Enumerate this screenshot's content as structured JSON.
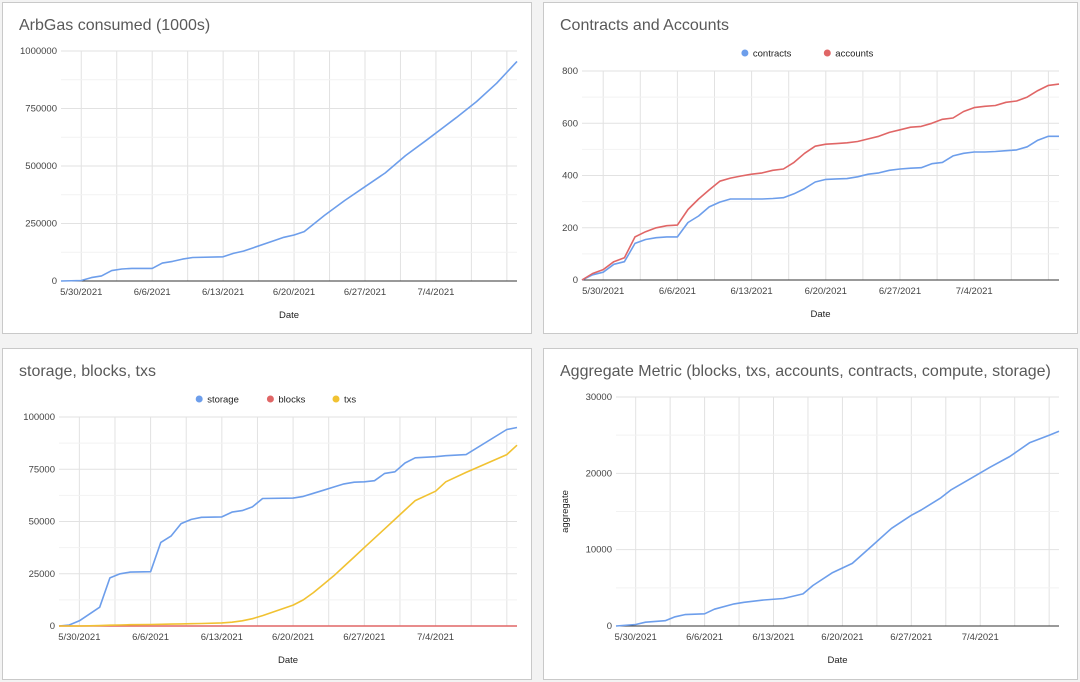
{
  "chart_data": [
    {
      "type": "line",
      "title": "ArbGas consumed (1000s)",
      "xlabel": "Date",
      "ylabel": "",
      "x_ticks": [
        "5/30/2021",
        "6/6/2021",
        "6/13/2021",
        "6/20/2021",
        "6/27/2021",
        "7/4/2021"
      ],
      "y_ticks": [
        "0",
        "250000",
        "500000",
        "750000",
        "1000000"
      ],
      "ylim": [
        0,
        1000000
      ],
      "xlim": [
        "2021-05-28",
        "2021-07-12"
      ],
      "grid": true,
      "legend": "none",
      "colors": {
        "series": "#6d9eeb"
      },
      "x": [
        "2021-05-28",
        "2021-05-30",
        "2021-05-31",
        "2021-06-01",
        "2021-06-02",
        "2021-06-03",
        "2021-06-04",
        "2021-06-06",
        "2021-06-07",
        "2021-06-08",
        "2021-06-09",
        "2021-06-10",
        "2021-06-13",
        "2021-06-14",
        "2021-06-15",
        "2021-06-16",
        "2021-06-18",
        "2021-06-19",
        "2021-06-20",
        "2021-06-21",
        "2021-06-23",
        "2021-06-25",
        "2021-06-27",
        "2021-06-29",
        "2021-07-01",
        "2021-07-03",
        "2021-07-06",
        "2021-07-08",
        "2021-07-10",
        "2021-07-12"
      ],
      "series": [
        {
          "values": [
            0,
            2000,
            15000,
            22000,
            45000,
            52000,
            55000,
            55000,
            78000,
            85000,
            95000,
            102000,
            105000,
            120000,
            130000,
            145000,
            175000,
            190000,
            200000,
            215000,
            285000,
            350000,
            410000,
            470000,
            545000,
            610000,
            710000,
            780000,
            860000,
            955000
          ]
        }
      ]
    },
    {
      "type": "line",
      "title": "Contracts and Accounts",
      "xlabel": "Date",
      "ylabel": "",
      "x_ticks": [
        "5/30/2021",
        "6/6/2021",
        "6/13/2021",
        "6/20/2021",
        "6/27/2021",
        "7/4/2021"
      ],
      "y_ticks": [
        "0",
        "200",
        "400",
        "600",
        "800"
      ],
      "ylim": [
        0,
        800
      ],
      "xlim": [
        "2021-05-28",
        "2021-07-12"
      ],
      "grid": true,
      "legend": "top",
      "colors": {
        "contracts": "#6d9eeb",
        "accounts": "#e06666"
      },
      "x": [
        "2021-05-28",
        "2021-05-29",
        "2021-05-30",
        "2021-05-31",
        "2021-06-01",
        "2021-06-02",
        "2021-06-03",
        "2021-06-04",
        "2021-06-05",
        "2021-06-06",
        "2021-06-07",
        "2021-06-08",
        "2021-06-09",
        "2021-06-10",
        "2021-06-11",
        "2021-06-12",
        "2021-06-13",
        "2021-06-14",
        "2021-06-15",
        "2021-06-16",
        "2021-06-17",
        "2021-06-18",
        "2021-06-19",
        "2021-06-20",
        "2021-06-21",
        "2021-06-22",
        "2021-06-23",
        "2021-06-24",
        "2021-06-25",
        "2021-06-26",
        "2021-06-27",
        "2021-06-28",
        "2021-06-29",
        "2021-06-30",
        "2021-07-01",
        "2021-07-02",
        "2021-07-03",
        "2021-07-04",
        "2021-07-05",
        "2021-07-06",
        "2021-07-07",
        "2021-07-08",
        "2021-07-09",
        "2021-07-10",
        "2021-07-11",
        "2021-07-12"
      ],
      "series": [
        {
          "name": "contracts",
          "values": [
            0,
            20,
            30,
            60,
            70,
            140,
            155,
            162,
            165,
            165,
            220,
            245,
            280,
            298,
            310,
            310,
            310,
            310,
            312,
            315,
            330,
            350,
            375,
            385,
            387,
            388,
            395,
            405,
            410,
            420,
            425,
            428,
            430,
            445,
            450,
            475,
            485,
            490,
            490,
            492,
            495,
            498,
            510,
            535,
            550,
            550
          ]
        },
        {
          "name": "accounts",
          "values": [
            0,
            25,
            40,
            70,
            85,
            165,
            185,
            200,
            208,
            210,
            270,
            310,
            345,
            378,
            390,
            398,
            405,
            410,
            420,
            425,
            450,
            485,
            512,
            520,
            522,
            525,
            530,
            540,
            550,
            565,
            575,
            585,
            588,
            600,
            615,
            620,
            645,
            660,
            665,
            668,
            680,
            685,
            700,
            725,
            745,
            750
          ]
        }
      ]
    },
    {
      "type": "line",
      "title": "storage, blocks, txs",
      "xlabel": "Date",
      "ylabel": "",
      "x_ticks": [
        "5/30/2021",
        "6/6/2021",
        "6/13/2021",
        "6/20/2021",
        "6/27/2021",
        "7/4/2021"
      ],
      "y_ticks": [
        "0",
        "25000",
        "50000",
        "75000",
        "100000"
      ],
      "ylim": [
        0,
        100000
      ],
      "xlim": [
        "2021-05-28",
        "2021-07-12"
      ],
      "grid": true,
      "legend": "top",
      "colors": {
        "storage": "#6d9eeb",
        "blocks": "#e06666",
        "txs": "#f1c232"
      },
      "x": [
        "2021-05-28",
        "2021-05-29",
        "2021-05-30",
        "2021-06-01",
        "2021-06-02",
        "2021-06-03",
        "2021-06-04",
        "2021-06-06",
        "2021-06-07",
        "2021-06-08",
        "2021-06-09",
        "2021-06-10",
        "2021-06-11",
        "2021-06-13",
        "2021-06-14",
        "2021-06-15",
        "2021-06-16",
        "2021-06-17",
        "2021-06-20",
        "2021-06-21",
        "2021-06-22",
        "2021-06-23",
        "2021-06-24",
        "2021-06-25",
        "2021-06-26",
        "2021-06-27",
        "2021-06-28",
        "2021-06-29",
        "2021-06-30",
        "2021-07-01",
        "2021-07-02",
        "2021-07-04",
        "2021-07-05",
        "2021-07-07",
        "2021-07-11",
        "2021-07-12"
      ],
      "series": [
        {
          "name": "storage",
          "values": [
            0,
            500,
            2500,
            9000,
            23000,
            25000,
            25800,
            26000,
            40000,
            43000,
            49000,
            51000,
            52000,
            52200,
            54500,
            55200,
            57000,
            61000,
            61200,
            62000,
            63500,
            65000,
            66500,
            68000,
            68800,
            69000,
            69500,
            73000,
            73800,
            78000,
            80500,
            81000,
            81500,
            82000,
            94000,
            95000
          ]
        },
        {
          "name": "blocks",
          "values": [
            0,
            0,
            0,
            0,
            0,
            0,
            0,
            0,
            0,
            0,
            0,
            0,
            0,
            0,
            0,
            0,
            0,
            0,
            0,
            0,
            0,
            0,
            0,
            0,
            0,
            0,
            0,
            0,
            0,
            0,
            0,
            0,
            0,
            0,
            0,
            0
          ]
        },
        {
          "name": "txs",
          "values": [
            0,
            0,
            0,
            200,
            400,
            500,
            600,
            700,
            800,
            900,
            1000,
            1100,
            1200,
            1500,
            1800,
            2500,
            3500,
            5000,
            10000,
            12500,
            16000,
            20000,
            24000,
            28500,
            33000,
            37500,
            42000,
            46500,
            51000,
            55500,
            60000,
            64500,
            69000,
            73500,
            82000,
            86500
          ]
        }
      ]
    },
    {
      "type": "line",
      "title": "Aggregate Metric (blocks, txs, accounts, contracts, compute, storage)",
      "xlabel": "Date",
      "ylabel": "aggregate",
      "x_ticks": [
        "5/30/2021",
        "6/6/2021",
        "6/13/2021",
        "6/20/2021",
        "6/27/2021",
        "7/4/2021"
      ],
      "y_ticks": [
        "0",
        "10000",
        "20000",
        "30000"
      ],
      "ylim": [
        0,
        30000
      ],
      "xlim": [
        "2021-05-28",
        "2021-07-12"
      ],
      "grid": true,
      "legend": "none",
      "colors": {
        "series": "#6d9eeb"
      },
      "x": [
        "2021-05-28",
        "2021-05-30",
        "2021-05-31",
        "2021-06-02",
        "2021-06-03",
        "2021-06-04",
        "2021-06-06",
        "2021-06-07",
        "2021-06-09",
        "2021-06-10",
        "2021-06-12",
        "2021-06-14",
        "2021-06-16",
        "2021-06-17",
        "2021-06-19",
        "2021-06-21",
        "2021-06-23",
        "2021-06-25",
        "2021-06-27",
        "2021-06-28",
        "2021-06-30",
        "2021-07-01",
        "2021-07-03",
        "2021-07-05",
        "2021-07-07",
        "2021-07-09",
        "2021-07-11",
        "2021-07-12"
      ],
      "series": [
        {
          "values": [
            0,
            200,
            500,
            700,
            1200,
            1500,
            1600,
            2200,
            2900,
            3100,
            3400,
            3600,
            4200,
            5300,
            7000,
            8200,
            10500,
            12800,
            14500,
            15200,
            16800,
            17800,
            19300,
            20800,
            22200,
            24000,
            25000,
            25500
          ]
        }
      ]
    }
  ]
}
